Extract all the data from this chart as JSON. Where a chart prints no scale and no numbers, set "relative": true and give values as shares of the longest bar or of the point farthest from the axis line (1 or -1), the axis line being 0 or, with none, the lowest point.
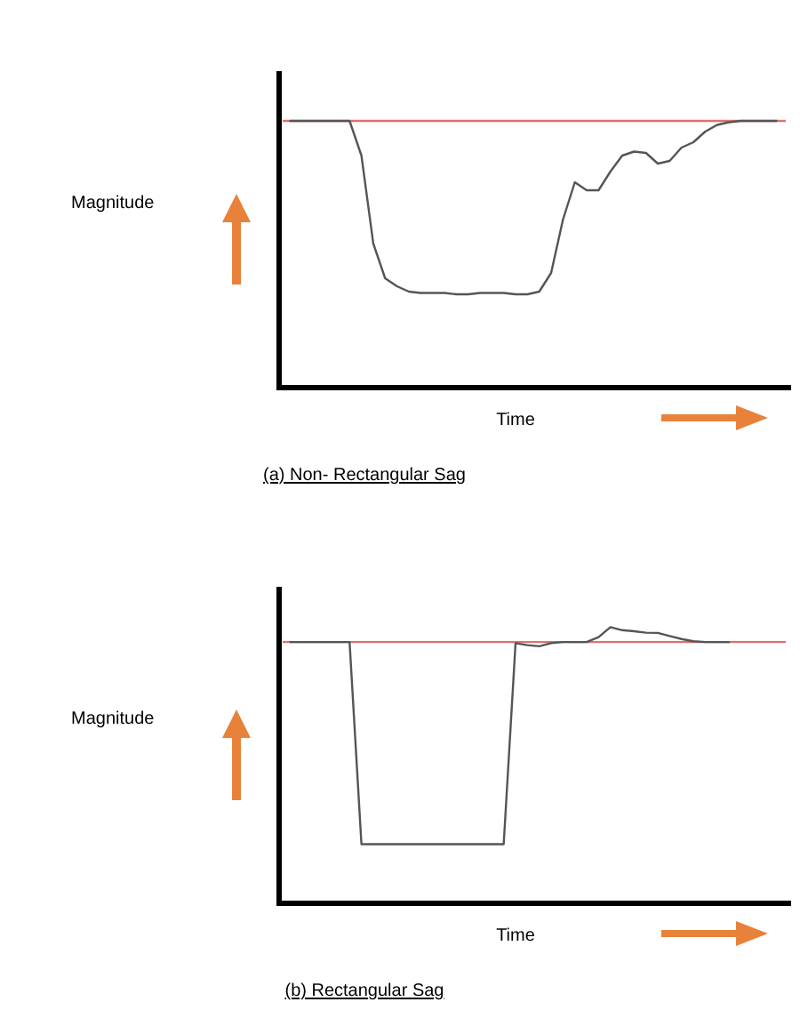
{
  "chart_data": [
    {
      "type": "line",
      "title": "(a)  Non- Rectangular Sag",
      "xlabel": "Time",
      "ylabel": "Magnitude",
      "relative": true,
      "categories": [
        null,
        null,
        null,
        null,
        null,
        null,
        null,
        null,
        null,
        null,
        null,
        null,
        null,
        null,
        null,
        null,
        null,
        null,
        null,
        null,
        null,
        null,
        null,
        null,
        null,
        null,
        null,
        null,
        null,
        null,
        null,
        null,
        null,
        null,
        null,
        null,
        null,
        null,
        null,
        null,
        null,
        null
      ],
      "series": [
        {
          "color": "#555555",
          "values": [
            1,
            1,
            1,
            1,
            1,
            1,
            0.87,
            0.54,
            0.41,
            0.38,
            0.36,
            0.355,
            0.355,
            0.355,
            0.35,
            0.35,
            0.355,
            0.355,
            0.355,
            0.35,
            0.35,
            0.36,
            0.43,
            0.63,
            0.77,
            0.74,
            0.74,
            0.81,
            0.87,
            0.885,
            0.88,
            0.84,
            0.85,
            0.9,
            0.92,
            0.96,
            0.985,
            0.995,
            1,
            1,
            1,
            1
          ]
        }
      ],
      "ref_lines": [
        {
          "axis": "y",
          "value": 1,
          "color": "#e07070"
        }
      ]
    },
    {
      "type": "line",
      "title": "(b)  Rectangular Sag",
      "xlabel": "Time",
      "ylabel": "Magnitude",
      "relative": true,
      "categories": [
        null,
        null,
        null,
        null,
        null,
        null,
        null,
        null,
        null,
        null,
        null,
        null,
        null,
        null,
        null,
        null,
        null,
        null,
        null,
        null,
        null,
        null,
        null,
        null,
        null,
        null,
        null,
        null,
        null,
        null,
        null,
        null,
        null,
        null,
        null,
        null,
        null,
        null,
        null,
        null,
        null,
        null
      ],
      "series": [
        {
          "color": "#555555",
          "values": [
            0.946,
            0.946,
            0.946,
            0.946,
            0.946,
            0.946,
            0.214,
            0.214,
            0.214,
            0.214,
            0.214,
            0.214,
            0.214,
            0.214,
            0.214,
            0.214,
            0.214,
            0.214,
            0.214,
            0.942,
            0.935,
            0.931,
            0.942,
            0.946,
            0.946,
            0.946,
            0.964,
            1,
            0.989,
            0.985,
            0.98,
            0.979,
            0.968,
            0.957,
            0.949,
            0.946,
            0.946,
            0.946,
            null,
            null,
            null,
            null
          ]
        }
      ],
      "ref_lines": [
        {
          "axis": "y",
          "value": 0.946,
          "color": "#e07070"
        }
      ]
    }
  ]
}
